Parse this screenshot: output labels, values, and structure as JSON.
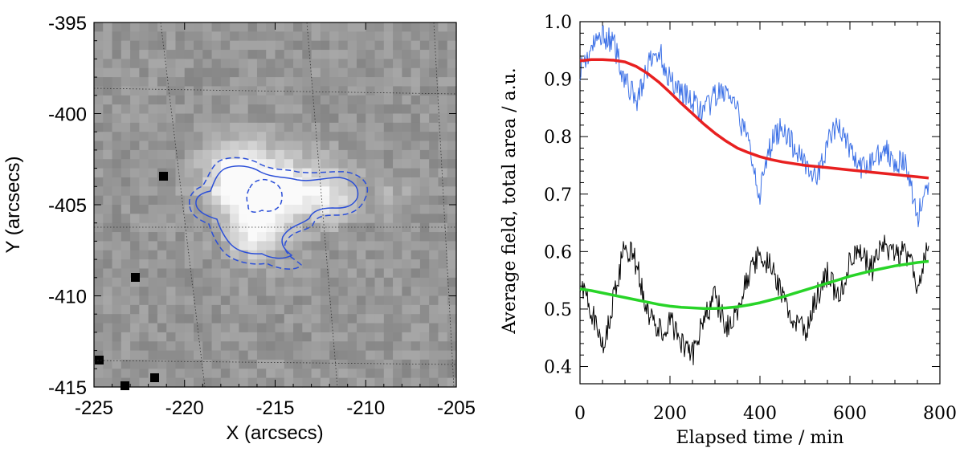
{
  "chart_data": [
    {
      "type": "heatmap",
      "xlabel": "X (arcsecs)",
      "ylabel": "Y (arcsecs)",
      "xlim": [
        -225,
        -205
      ],
      "ylim": [
        -415,
        -395
      ],
      "x_ticks": [
        "-225",
        "-220",
        "-215",
        "-210",
        "-205"
      ],
      "y_ticks": [
        "-395",
        "-400",
        "-405",
        "-410",
        "-415"
      ],
      "contour_color": "#2b4fd8",
      "colormap": "grayscale"
    },
    {
      "type": "line",
      "xlabel": "Elapsed time / min",
      "ylabel": "Average field, total area / a.u.",
      "xlim": [
        0,
        800
      ],
      "ylim": [
        0.37,
        1.0
      ],
      "x_ticks": [
        "0",
        "200",
        "400",
        "600",
        "800"
      ],
      "y_ticks": [
        "0.4",
        "0.5",
        "0.6",
        "0.7",
        "0.8",
        "0.9",
        "1.0"
      ],
      "series": [
        {
          "color": "#3a6fe6",
          "style": "noisy",
          "x": [
            0,
            25,
            50,
            75,
            100,
            125,
            150,
            175,
            200,
            225,
            250,
            275,
            300,
            325,
            350,
            375,
            400,
            425,
            450,
            475,
            500,
            525,
            550,
            575,
            600,
            625,
            650,
            675,
            700,
            725,
            750,
            775
          ],
          "y": [
            0.92,
            0.95,
            0.98,
            0.96,
            0.9,
            0.86,
            0.92,
            0.95,
            0.9,
            0.88,
            0.86,
            0.84,
            0.87,
            0.88,
            0.84,
            0.79,
            0.7,
            0.79,
            0.82,
            0.78,
            0.76,
            0.72,
            0.79,
            0.82,
            0.78,
            0.74,
            0.76,
            0.78,
            0.76,
            0.75,
            0.66,
            0.72
          ]
        },
        {
          "color": "#e82020",
          "style": "smooth",
          "x": [
            0,
            25,
            50,
            75,
            100,
            125,
            150,
            175,
            200,
            225,
            250,
            275,
            300,
            325,
            350,
            375,
            400,
            425,
            450,
            475,
            500,
            525,
            550,
            575,
            600,
            625,
            650,
            675,
            700,
            725,
            750,
            775
          ],
          "y": [
            0.932,
            0.934,
            0.934,
            0.933,
            0.93,
            0.922,
            0.91,
            0.895,
            0.877,
            0.858,
            0.84,
            0.822,
            0.806,
            0.792,
            0.78,
            0.772,
            0.765,
            0.76,
            0.756,
            0.753,
            0.75,
            0.748,
            0.746,
            0.744,
            0.742,
            0.74,
            0.738,
            0.736,
            0.734,
            0.732,
            0.73,
            0.728
          ]
        },
        {
          "color": "#000000",
          "style": "noisy",
          "x": [
            0,
            25,
            50,
            75,
            100,
            125,
            150,
            175,
            200,
            225,
            250,
            275,
            300,
            325,
            350,
            375,
            400,
            425,
            450,
            475,
            500,
            525,
            550,
            575,
            600,
            625,
            650,
            675,
            700,
            725,
            750,
            775
          ],
          "y": [
            0.55,
            0.5,
            0.43,
            0.52,
            0.61,
            0.58,
            0.5,
            0.46,
            0.48,
            0.44,
            0.42,
            0.48,
            0.52,
            0.47,
            0.5,
            0.56,
            0.6,
            0.57,
            0.52,
            0.48,
            0.46,
            0.52,
            0.56,
            0.52,
            0.58,
            0.6,
            0.57,
            0.62,
            0.59,
            0.6,
            0.54,
            0.61
          ]
        },
        {
          "color": "#28d428",
          "style": "smooth",
          "x": [
            0,
            25,
            50,
            75,
            100,
            125,
            150,
            175,
            200,
            225,
            250,
            275,
            300,
            325,
            350,
            375,
            400,
            425,
            450,
            475,
            500,
            525,
            550,
            575,
            600,
            625,
            650,
            675,
            700,
            725,
            750,
            775
          ],
          "y": [
            0.535,
            0.532,
            0.528,
            0.524,
            0.52,
            0.516,
            0.512,
            0.508,
            0.505,
            0.503,
            0.502,
            0.501,
            0.501,
            0.502,
            0.504,
            0.507,
            0.511,
            0.516,
            0.521,
            0.527,
            0.533,
            0.539,
            0.545,
            0.551,
            0.557,
            0.562,
            0.567,
            0.571,
            0.575,
            0.578,
            0.581,
            0.583
          ]
        }
      ]
    }
  ]
}
